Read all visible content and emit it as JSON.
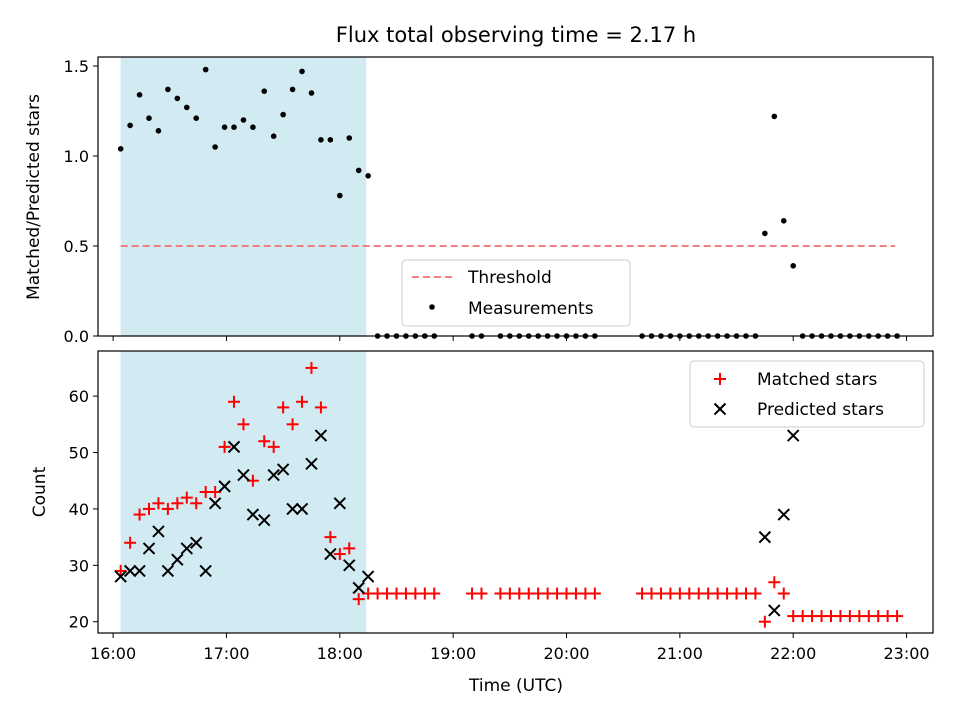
{
  "chart_data": {
    "type": "scatter",
    "title": "Flux total observing time = 2.17 h",
    "xlabel": "Time (UTC)",
    "x_unit": "hours UTC",
    "xlim": [
      "15:52",
      "23:14"
    ],
    "xticks": [
      {
        "t": "16:00",
        "label": "16:00"
      },
      {
        "t": "17:00",
        "label": "17:00"
      },
      {
        "t": "18:00",
        "label": "18:00"
      },
      {
        "t": "19:00",
        "label": "19:00"
      },
      {
        "t": "20:00",
        "label": "20:00"
      },
      {
        "t": "21:00",
        "label": "21:00"
      },
      {
        "t": "22:00",
        "label": "22:00"
      },
      {
        "t": "23:00",
        "label": "23:00"
      }
    ],
    "shaded_span": {
      "from": "16:04",
      "to": "18:14",
      "color": "#add8e6"
    },
    "top": {
      "ylabel": "Matched/Predicted stars",
      "ylim": [
        0,
        1.55
      ],
      "yticks": [
        {
          "v": 0.0,
          "label": "0.0"
        },
        {
          "v": 0.5,
          "label": "0.5"
        },
        {
          "v": 1.0,
          "label": "1.0"
        },
        {
          "v": 1.5,
          "label": "1.5"
        }
      ],
      "threshold": {
        "name": "Threshold",
        "value": 0.5,
        "from": "16:04",
        "to": "22:54",
        "color": "#f08080"
      },
      "measurements": {
        "name": "Measurements",
        "color": "#000000",
        "points": [
          [
            "16:04",
            1.04
          ],
          [
            "16:09",
            1.17
          ],
          [
            "16:14",
            1.34
          ],
          [
            "16:19",
            1.21
          ],
          [
            "16:24",
            1.14
          ],
          [
            "16:29",
            1.37
          ],
          [
            "16:34",
            1.32
          ],
          [
            "16:39",
            1.27
          ],
          [
            "16:44",
            1.21
          ],
          [
            "16:49",
            1.48
          ],
          [
            "16:54",
            1.05
          ],
          [
            "16:59",
            1.16
          ],
          [
            "17:04",
            1.16
          ],
          [
            "17:09",
            1.2
          ],
          [
            "17:14",
            1.16
          ],
          [
            "17:20",
            1.36
          ],
          [
            "17:25",
            1.11
          ],
          [
            "17:30",
            1.23
          ],
          [
            "17:35",
            1.37
          ],
          [
            "17:40",
            1.47
          ],
          [
            "17:45",
            1.35
          ],
          [
            "17:50",
            1.09
          ],
          [
            "17:55",
            1.09
          ],
          [
            "18:00",
            0.78
          ],
          [
            "18:05",
            1.1
          ],
          [
            "18:10",
            0.92
          ],
          [
            "18:15",
            0.89
          ],
          [
            "18:20",
            0
          ],
          [
            "18:25",
            0
          ],
          [
            "18:30",
            0
          ],
          [
            "18:35",
            0
          ],
          [
            "18:40",
            0
          ],
          [
            "18:45",
            0
          ],
          [
            "18:50",
            0
          ],
          [
            "19:10",
            0
          ],
          [
            "19:15",
            0
          ],
          [
            "19:25",
            0
          ],
          [
            "19:30",
            0
          ],
          [
            "19:35",
            0
          ],
          [
            "19:40",
            0
          ],
          [
            "19:45",
            0
          ],
          [
            "19:50",
            0
          ],
          [
            "19:55",
            0
          ],
          [
            "20:00",
            0
          ],
          [
            "20:05",
            0
          ],
          [
            "20:10",
            0
          ],
          [
            "20:15",
            0
          ],
          [
            "20:40",
            0
          ],
          [
            "20:45",
            0
          ],
          [
            "20:50",
            0
          ],
          [
            "20:55",
            0
          ],
          [
            "21:00",
            0
          ],
          [
            "21:05",
            0
          ],
          [
            "21:10",
            0
          ],
          [
            "21:15",
            0
          ],
          [
            "21:20",
            0
          ],
          [
            "21:25",
            0
          ],
          [
            "21:30",
            0
          ],
          [
            "21:35",
            0
          ],
          [
            "21:40",
            0
          ],
          [
            "21:45",
            0.57
          ],
          [
            "21:50",
            1.22
          ],
          [
            "21:55",
            0.64
          ],
          [
            "22:00",
            0.39
          ],
          [
            "22:05",
            0
          ],
          [
            "22:10",
            0
          ],
          [
            "22:15",
            0
          ],
          [
            "22:20",
            0
          ],
          [
            "22:25",
            0
          ],
          [
            "22:30",
            0
          ],
          [
            "22:35",
            0
          ],
          [
            "22:40",
            0
          ],
          [
            "22:45",
            0
          ],
          [
            "22:50",
            0
          ],
          [
            "22:55",
            0
          ]
        ]
      },
      "legend_position": "lower-center"
    },
    "bottom": {
      "ylabel": "Count",
      "ylim": [
        18,
        68
      ],
      "yticks": [
        {
          "v": 20,
          "label": "20"
        },
        {
          "v": 30,
          "label": "30"
        },
        {
          "v": 40,
          "label": "40"
        },
        {
          "v": 50,
          "label": "50"
        },
        {
          "v": 60,
          "label": "60"
        }
      ],
      "legend_position": "upper-right",
      "series": [
        {
          "name": "Matched stars",
          "marker": "+",
          "color": "#ff0000",
          "points": [
            [
              "16:04",
              29
            ],
            [
              "16:09",
              34
            ],
            [
              "16:14",
              39
            ],
            [
              "16:19",
              40
            ],
            [
              "16:24",
              41
            ],
            [
              "16:29",
              40
            ],
            [
              "16:34",
              41
            ],
            [
              "16:39",
              42
            ],
            [
              "16:44",
              41
            ],
            [
              "16:49",
              43
            ],
            [
              "16:54",
              43
            ],
            [
              "16:59",
              51
            ],
            [
              "17:04",
              59
            ],
            [
              "17:09",
              55
            ],
            [
              "17:14",
              45
            ],
            [
              "17:20",
              52
            ],
            [
              "17:25",
              51
            ],
            [
              "17:30",
              58
            ],
            [
              "17:35",
              55
            ],
            [
              "17:40",
              59
            ],
            [
              "17:45",
              65
            ],
            [
              "17:50",
              58
            ],
            [
              "17:55",
              35
            ],
            [
              "18:00",
              32
            ],
            [
              "18:05",
              33
            ],
            [
              "18:10",
              24
            ],
            [
              "18:15",
              25
            ],
            [
              "18:20",
              25
            ],
            [
              "18:25",
              25
            ],
            [
              "18:30",
              25
            ],
            [
              "18:35",
              25
            ],
            [
              "18:40",
              25
            ],
            [
              "18:45",
              25
            ],
            [
              "18:50",
              25
            ],
            [
              "19:10",
              25
            ],
            [
              "19:15",
              25
            ],
            [
              "19:25",
              25
            ],
            [
              "19:30",
              25
            ],
            [
              "19:35",
              25
            ],
            [
              "19:40",
              25
            ],
            [
              "19:45",
              25
            ],
            [
              "19:50",
              25
            ],
            [
              "19:55",
              25
            ],
            [
              "20:00",
              25
            ],
            [
              "20:05",
              25
            ],
            [
              "20:10",
              25
            ],
            [
              "20:15",
              25
            ],
            [
              "20:40",
              25
            ],
            [
              "20:45",
              25
            ],
            [
              "20:50",
              25
            ],
            [
              "20:55",
              25
            ],
            [
              "21:00",
              25
            ],
            [
              "21:05",
              25
            ],
            [
              "21:10",
              25
            ],
            [
              "21:15",
              25
            ],
            [
              "21:20",
              25
            ],
            [
              "21:25",
              25
            ],
            [
              "21:30",
              25
            ],
            [
              "21:35",
              25
            ],
            [
              "21:40",
              25
            ],
            [
              "21:45",
              20
            ],
            [
              "21:50",
              27
            ],
            [
              "21:55",
              25
            ],
            [
              "22:00",
              21
            ],
            [
              "22:05",
              21
            ],
            [
              "22:10",
              21
            ],
            [
              "22:15",
              21
            ],
            [
              "22:20",
              21
            ],
            [
              "22:25",
              21
            ],
            [
              "22:30",
              21
            ],
            [
              "22:35",
              21
            ],
            [
              "22:40",
              21
            ],
            [
              "22:45",
              21
            ],
            [
              "22:50",
              21
            ],
            [
              "22:55",
              21
            ]
          ]
        },
        {
          "name": "Predicted stars",
          "marker": "x",
          "color": "#000000",
          "points": [
            [
              "16:04",
              28
            ],
            [
              "16:09",
              29
            ],
            [
              "16:14",
              29
            ],
            [
              "16:19",
              33
            ],
            [
              "16:24",
              36
            ],
            [
              "16:29",
              29
            ],
            [
              "16:34",
              31
            ],
            [
              "16:39",
              33
            ],
            [
              "16:44",
              34
            ],
            [
              "16:49",
              29
            ],
            [
              "16:54",
              41
            ],
            [
              "16:59",
              44
            ],
            [
              "17:04",
              51
            ],
            [
              "17:09",
              46
            ],
            [
              "17:14",
              39
            ],
            [
              "17:20",
              38
            ],
            [
              "17:25",
              46
            ],
            [
              "17:30",
              47
            ],
            [
              "17:35",
              40
            ],
            [
              "17:40",
              40
            ],
            [
              "17:45",
              48
            ],
            [
              "17:50",
              53
            ],
            [
              "17:55",
              32
            ],
            [
              "18:00",
              41
            ],
            [
              "18:05",
              30
            ],
            [
              "18:10",
              26
            ],
            [
              "18:15",
              28
            ],
            [
              "21:45",
              35
            ],
            [
              "21:50",
              22
            ],
            [
              "21:55",
              39
            ],
            [
              "22:00",
              53
            ]
          ]
        }
      ]
    }
  }
}
